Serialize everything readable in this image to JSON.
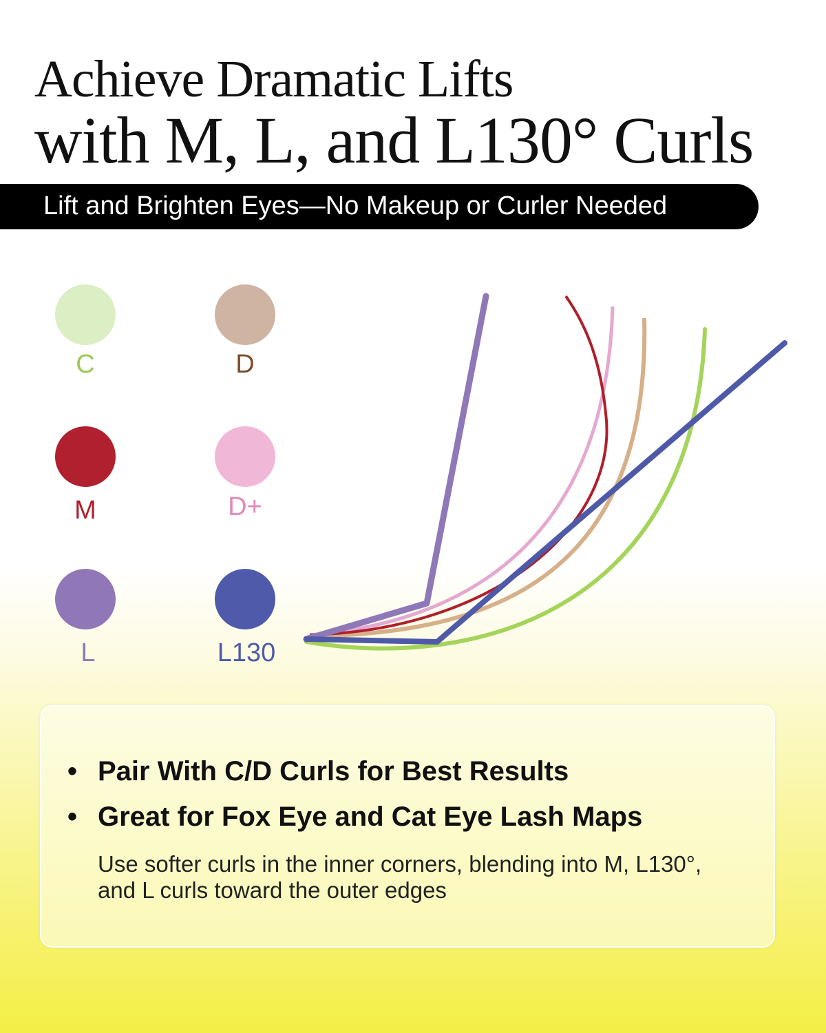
{
  "header": {
    "title_line1": "Achieve Dramatic Lifts",
    "title_line2": "with M, L, and L130° Curls",
    "banner": "Lift and Brighten Eyes—No Makeup or Curler Needed"
  },
  "curl_legend": [
    {
      "label": "C",
      "color": "#dcefc4",
      "text_color": "#9cc85a"
    },
    {
      "label": "D",
      "color": "#cfb3a3",
      "text_color": "#7a4e2c"
    },
    {
      "label": "M",
      "color": "#b0202e",
      "text_color": "#b0202e"
    },
    {
      "label": "D+",
      "color": "#f0b8d6",
      "text_color": "#e08ab8"
    },
    {
      "label": "L",
      "color": "#9078b8",
      "text_color": "#9078b8"
    },
    {
      "label": "L130",
      "color": "#4f5aaa",
      "text_color": "#4f5aaa"
    }
  ],
  "card": {
    "bullets": [
      "Pair With C/D Curls for Best Results",
      "Great for Fox Eye and Cat Eye Lash Maps"
    ],
    "note": "Use softer curls in the inner corners, blending into M, L130°, and L curls toward the outer edges"
  }
}
